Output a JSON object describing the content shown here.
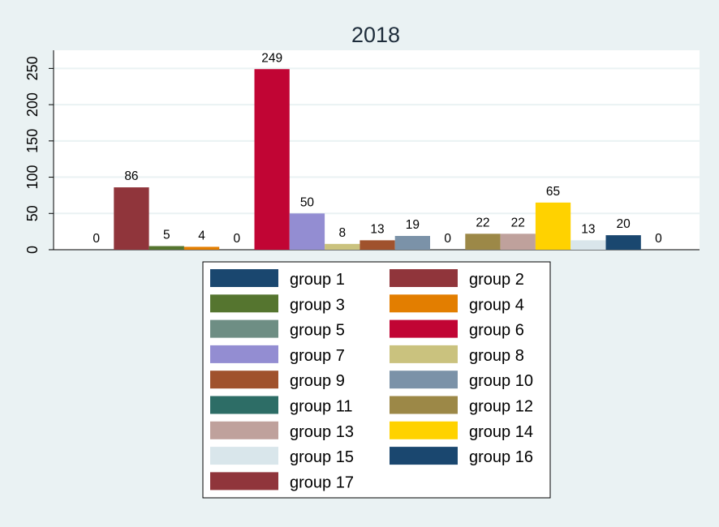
{
  "chart_data": {
    "type": "bar",
    "title": "2018",
    "xlabel": "",
    "ylabel": "",
    "ylim": [
      0,
      275
    ],
    "y_ticks": [
      0,
      50,
      100,
      150,
      200,
      250
    ],
    "grid": true,
    "legend_position": "bottom",
    "legend_columns": 2,
    "series": [
      {
        "name": "group 1",
        "value": 0,
        "color": "#1a476f"
      },
      {
        "name": "group 2",
        "value": 86,
        "color": "#90353b"
      },
      {
        "name": "group 3",
        "value": 5,
        "color": "#55752f"
      },
      {
        "name": "group 4",
        "value": 4,
        "color": "#e37e00"
      },
      {
        "name": "group 5",
        "value": 0,
        "color": "#6e8e84"
      },
      {
        "name": "group 6",
        "value": 249,
        "color": "#c10534"
      },
      {
        "name": "group 7",
        "value": 50,
        "color": "#938dd2"
      },
      {
        "name": "group 8",
        "value": 8,
        "color": "#cac27e"
      },
      {
        "name": "group 9",
        "value": 13,
        "color": "#a0522d"
      },
      {
        "name": "group 10",
        "value": 19,
        "color": "#7b92a8"
      },
      {
        "name": "group 11",
        "value": 0,
        "color": "#2d6d66"
      },
      {
        "name": "group 12",
        "value": 22,
        "color": "#9c8847"
      },
      {
        "name": "group 13",
        "value": 22,
        "color": "#bfa19c"
      },
      {
        "name": "group 14",
        "value": 65,
        "color": "#ffd200"
      },
      {
        "name": "group 15",
        "value": 13,
        "color": "#d9e6eb"
      },
      {
        "name": "group 16",
        "value": 20,
        "color": "#1a476f"
      },
      {
        "name": "group 17",
        "value": 0,
        "color": "#90353b"
      }
    ]
  }
}
